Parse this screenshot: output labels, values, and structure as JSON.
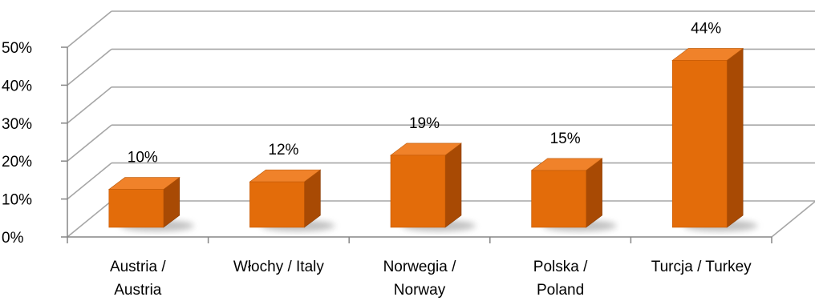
{
  "chart_data": {
    "type": "bar",
    "categories": [
      [
        "Austria /",
        "Austria"
      ],
      [
        "Włochy / Italy"
      ],
      [
        "Norwegia /",
        "Norway"
      ],
      [
        "Polska /",
        "Poland"
      ],
      [
        "Turcja / Turkey"
      ]
    ],
    "values": [
      10,
      12,
      19,
      15,
      44
    ],
    "data_labels": [
      "10%",
      "12%",
      "19%",
      "15%",
      "44%"
    ],
    "y_ticks": [
      "0%",
      "10%",
      "20%",
      "30%",
      "40%",
      "50%"
    ],
    "ylim": [
      0,
      50
    ],
    "grid": true,
    "three_d": true,
    "colors": {
      "bar_front": "#e36c0a",
      "bar_side": "#a84a04",
      "bar_top": "#f0822a",
      "gridline": "#a6a6a6",
      "axis": "#868686"
    }
  }
}
